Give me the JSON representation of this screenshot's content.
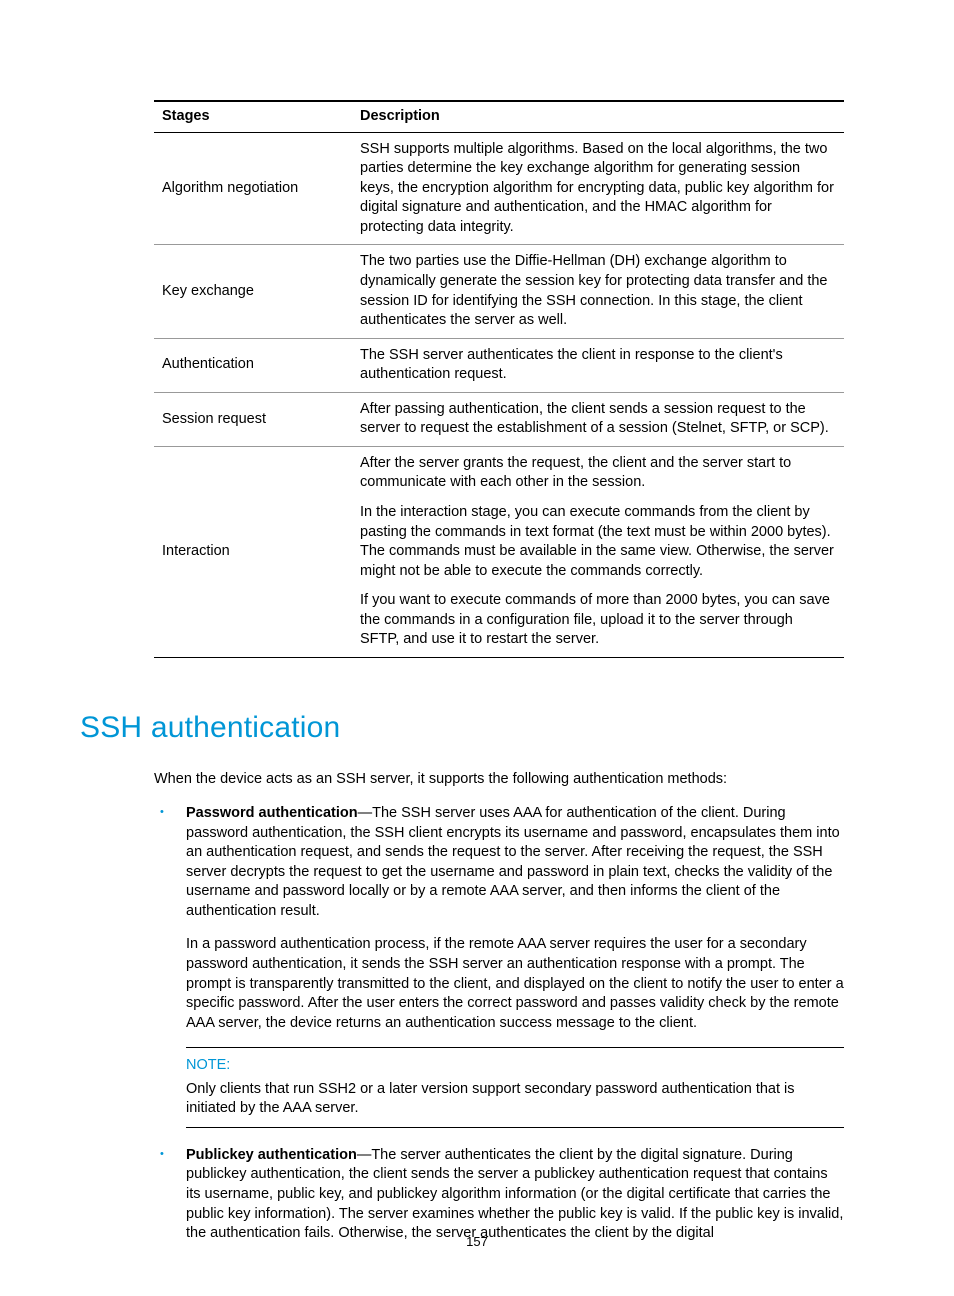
{
  "colors": {
    "accent": "#0096d6",
    "bullet": "#0096d6",
    "text": "#000000",
    "rule": "#000000",
    "row_rule": "#999999",
    "background": "#ffffff"
  },
  "table": {
    "headers": [
      "Stages",
      "Description"
    ],
    "rows": [
      {
        "stage": "Algorithm negotiation",
        "desc": [
          "SSH supports multiple algorithms. Based on the local algorithms, the two parties determine the key exchange algorithm for generating session keys, the encryption algorithm for encrypting data, public key algorithm for digital signature and authentication, and the HMAC algorithm for protecting data integrity."
        ]
      },
      {
        "stage": "Key exchange",
        "desc": [
          "The two parties use the Diffie-Hellman (DH) exchange algorithm to dynamically generate the session key for protecting data transfer and the session ID for identifying the SSH connection. In this stage, the client authenticates the server as well."
        ]
      },
      {
        "stage": "Authentication",
        "desc": [
          "The SSH server authenticates the client in response to the client's authentication request."
        ]
      },
      {
        "stage": "Session request",
        "desc": [
          "After passing authentication, the client sends a session request to the server to request the establishment of a session (Stelnet, SFTP, or SCP)."
        ]
      },
      {
        "stage": "Interaction",
        "desc": [
          "After the server grants the request, the client and the server start to communicate with each other in the session.",
          "In the interaction stage, you can execute commands from the client by pasting the commands in text format (the text must be within 2000 bytes). The commands must be available in the same view. Otherwise, the server might not be able to execute the commands correctly.",
          "If you want to execute commands of more than 2000 bytes, you can save the commands in a configuration file, upload it to the server through SFTP, and use it to restart the server."
        ]
      }
    ]
  },
  "heading": "SSH authentication",
  "intro": "When the device acts as an SSH server, it supports the following authentication methods:",
  "bullets": [
    {
      "lead": "Password authentication",
      "paras": [
        "—The SSH server uses AAA for authentication of the client. During password authentication, the SSH client encrypts its username and password, encapsulates them into an authentication request, and sends the request to the server. After receiving the request, the SSH server decrypts the request to get the username and password in plain text, checks the validity of the username and password locally or by a remote AAA server, and then informs the client of the authentication result.",
        "In a password authentication process, if the remote AAA server requires the user for a secondary password authentication, it sends the SSH server an authentication response with a prompt. The prompt is transparently transmitted to the client, and displayed on the client to notify the user to enter a specific password. After the user enters the correct password and passes validity check by the remote AAA server, the device returns an authentication success message to the client."
      ]
    },
    {
      "lead": "Publickey authentication",
      "paras": [
        "—The server authenticates the client by the digital signature. During publickey authentication, the client sends the server a publickey authentication request that contains its username, public key, and publickey algorithm information (or the digital certificate that carries the public key information). The server examines whether the public key is valid. If the public key is invalid, the authentication fails. Otherwise, the server authenticates the client by the digital"
      ]
    }
  ],
  "note": {
    "label": "NOTE:",
    "body": "Only clients that run SSH2 or a later version support secondary password authentication that is initiated by the AAA server."
  },
  "page_number": "157"
}
